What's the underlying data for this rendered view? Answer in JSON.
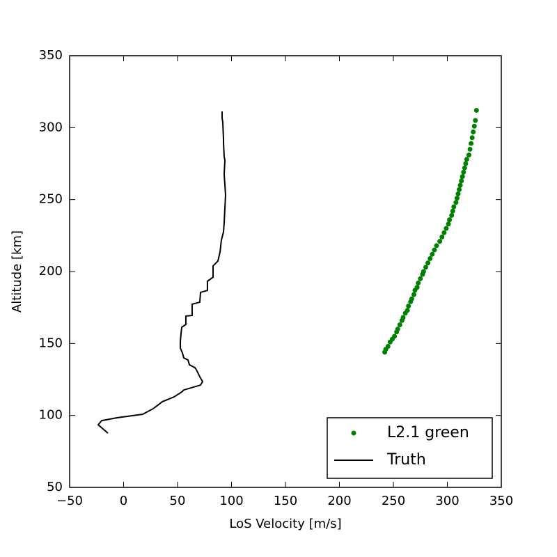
{
  "chart_data": {
    "type": "scatter",
    "xlabel": "LoS Velocity [m/s]",
    "ylabel": "Altitude [km]",
    "xlim": [
      -50,
      350
    ],
    "ylim": [
      50,
      350
    ],
    "xticks": [
      {
        "value": -50,
        "label": "−50"
      },
      0,
      50,
      100,
      150,
      200,
      250,
      300,
      350
    ],
    "yticks": [
      50,
      100,
      150,
      200,
      250,
      300,
      350
    ],
    "grid": false,
    "legend": "lower right",
    "series": [
      {
        "name": "L2.1 green",
        "color": "green",
        "kind": "scatter",
        "x": [
          242,
          243,
          245,
          247,
          249,
          251,
          253,
          254,
          256,
          258,
          259,
          261,
          263,
          264,
          266,
          267,
          269,
          270,
          272,
          273,
          275,
          277,
          278,
          280,
          282,
          284,
          286,
          288,
          290,
          293,
          295,
          297,
          299,
          301,
          302,
          304,
          305,
          306,
          308,
          309,
          310,
          311,
          312,
          313,
          314,
          315,
          316,
          317,
          318,
          320,
          321,
          322,
          323,
          324,
          325,
          326,
          327
        ],
        "values": [
          144,
          146,
          148,
          151,
          153,
          155,
          158,
          160,
          163,
          166,
          168,
          171,
          173,
          176,
          179,
          181,
          184,
          187,
          189,
          192,
          195,
          198,
          200,
          203,
          206,
          209,
          212,
          215,
          218,
          221,
          224,
          227,
          230,
          233,
          236,
          239,
          242,
          245,
          248,
          251,
          254,
          257,
          260,
          263,
          266,
          269,
          272,
          275,
          278,
          281,
          285,
          289,
          293,
          297,
          301,
          305,
          312
        ]
      },
      {
        "name": "Truth",
        "color": "black",
        "kind": "line",
        "x": [
          -14.5,
          -23.5,
          -20.3,
          -6.1,
          17.7,
          27.4,
          32.6,
          35.8,
          46.8,
          53.9,
          55.8,
          71.3,
          73.2,
          70.6,
          67.4,
          66.1,
          61.0,
          59.7,
          55.8,
          54.5,
          52.6,
          52.6,
          53.2,
          53.9,
          57.7,
          57.7,
          63.5,
          63.5,
          70.6,
          71.3,
          77.7,
          77.7,
          82.9,
          82.9,
          87.4,
          89.4,
          90.6,
          92.6,
          93.2,
          94.5,
          93.2,
          93.9,
          93.2,
          92.6,
          92.6,
          91.9,
          91.3,
          91.3
        ],
        "values": [
          87.7,
          93.5,
          96.4,
          98.4,
          100.8,
          104.7,
          107.6,
          109.5,
          112.9,
          116.3,
          117.7,
          121.1,
          123.5,
          126.9,
          131.8,
          133.2,
          135.2,
          138.5,
          140.0,
          143.4,
          146.8,
          151.6,
          156.5,
          161.3,
          163.2,
          169.0,
          169.5,
          177.3,
          178.7,
          185.5,
          186.9,
          193.2,
          196.1,
          203.9,
          207.3,
          213.6,
          221.8,
          227.6,
          233.9,
          253.2,
          267.7,
          277.4,
          279.8,
          289.5,
          291.9,
          304.0,
          306.5,
          311.3
        ]
      }
    ]
  }
}
